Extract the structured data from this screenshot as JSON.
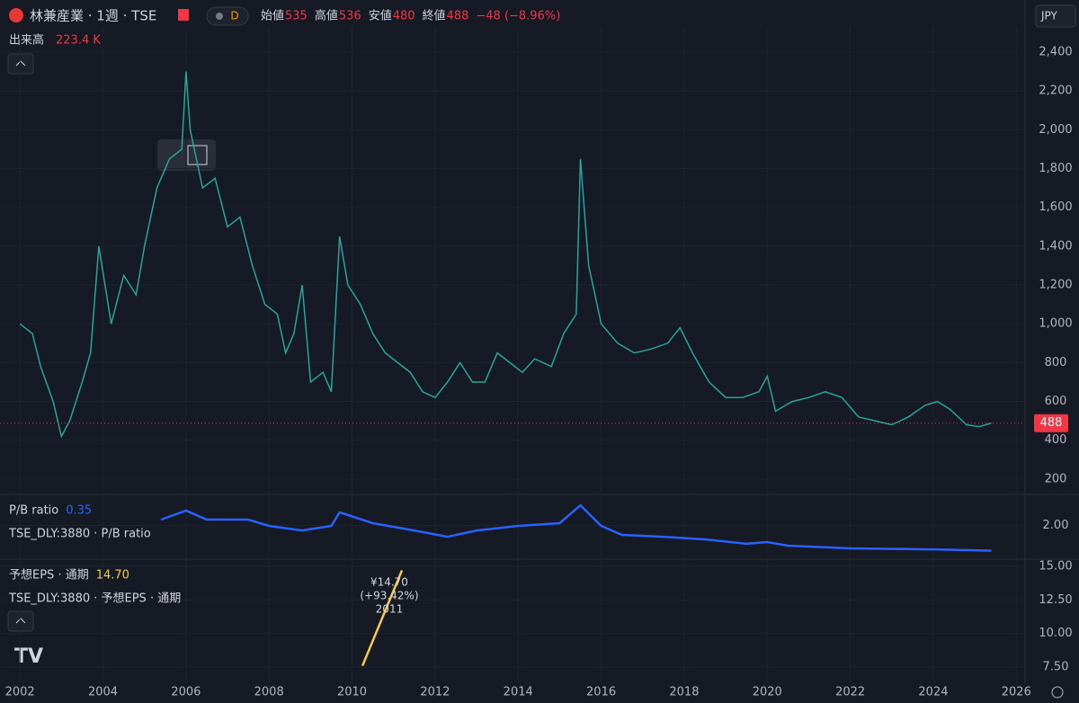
{
  "header": {
    "symbol": "林兼産業 · 1週 · TSE",
    "badge": "D",
    "ohlc": [
      {
        "label": "始値",
        "value": "535"
      },
      {
        "label": "高値",
        "value": "536"
      },
      {
        "label": "安値",
        "value": "480"
      },
      {
        "label": "終値",
        "value": "488"
      }
    ],
    "change": "−48 (−8.96%)",
    "currency": "JPY",
    "volume_label": "出来高",
    "volume": "223.4 K"
  },
  "chart_data": [
    {
      "type": "line",
      "color": "#26a69a",
      "x": [
        2002.0,
        2002.3,
        2002.5,
        2002.8,
        2003.0,
        2003.2,
        2003.5,
        2003.7,
        2003.9,
        2004.2,
        2004.5,
        2004.8,
        2005.0,
        2005.3,
        2005.6,
        2005.9,
        2006.0,
        2006.1,
        2006.4,
        2006.7,
        2007.0,
        2007.3,
        2007.6,
        2007.9,
        2008.2,
        2008.4,
        2008.6,
        2008.8,
        2009.0,
        2009.3,
        2009.5,
        2009.7,
        2009.9,
        2010.2,
        2010.5,
        2010.8,
        2011.1,
        2011.4,
        2011.7,
        2012.0,
        2012.3,
        2012.6,
        2012.9,
        2013.2,
        2013.5,
        2013.8,
        2014.1,
        2014.4,
        2014.8,
        2015.1,
        2015.4,
        2015.5,
        2015.7,
        2016.0,
        2016.4,
        2016.8,
        2017.2,
        2017.6,
        2017.9,
        2018.2,
        2018.6,
        2019.0,
        2019.4,
        2019.8,
        2020.0,
        2020.2,
        2020.6,
        2021.0,
        2021.4,
        2021.8,
        2022.2,
        2022.6,
        2023.0,
        2023.4,
        2023.8,
        2024.1,
        2024.4,
        2024.8,
        2025.1,
        2025.4
      ],
      "values": [
        1000,
        950,
        780,
        600,
        420,
        500,
        700,
        850,
        1400,
        1000,
        1250,
        1150,
        1400,
        1700,
        1850,
        1900,
        2300,
        2000,
        1700,
        1750,
        1500,
        1550,
        1300,
        1100,
        1050,
        850,
        950,
        1200,
        700,
        750,
        650,
        1450,
        1200,
        1100,
        950,
        850,
        800,
        750,
        650,
        620,
        700,
        800,
        700,
        700,
        850,
        800,
        750,
        820,
        780,
        950,
        1050,
        1850,
        1300,
        1000,
        900,
        850,
        870,
        900,
        980,
        850,
        700,
        620,
        620,
        650,
        730,
        550,
        600,
        620,
        650,
        620,
        520,
        500,
        480,
        520,
        580,
        600,
        560,
        480,
        470,
        488
      ],
      "last_value": 488,
      "xlim": [
        2001.52,
        2026.21
      ],
      "xticks": [
        2002,
        2004,
        2006,
        2008,
        2010,
        2012,
        2014,
        2016,
        2018,
        2020,
        2022,
        2024,
        2026
      ],
      "ylim": [
        130,
        2530
      ],
      "yticks": [
        200,
        400,
        600,
        800,
        {
          "value": 1000,
          "label": "1,000"
        },
        {
          "value": 1200,
          "label": "1,200"
        },
        {
          "value": 1400,
          "label": "1,400"
        },
        {
          "value": 1600,
          "label": "1,600"
        },
        {
          "value": 1800,
          "label": "1,800"
        },
        {
          "value": 2000,
          "label": "2,000"
        },
        {
          "value": 2200,
          "label": "2,200"
        },
        {
          "value": 2400,
          "label": "2,400"
        }
      ],
      "grid": true
    },
    {
      "type": "line",
      "title": "P/B ratio",
      "last_value": 0.35,
      "x": [
        2005.4,
        2006.0,
        2006.5,
        2007.5,
        2008.0,
        2008.8,
        2009.5,
        2009.7,
        2010.5,
        2011.5,
        2012.3,
        2013.0,
        2014.0,
        2015.0,
        2015.5,
        2016.0,
        2016.5,
        2017.5,
        2018.5,
        2019.5,
        2020.0,
        2020.5,
        2022.0,
        2024.0,
        2025.4
      ],
      "series": [
        {
          "name": "TSE_DLY:3880 · P/B ratio",
          "color": "#2962ff",
          "values": [
            2.38,
            2.96,
            2.38,
            2.38,
            1.97,
            1.67,
            1.97,
            2.85,
            2.14,
            1.67,
            1.26,
            1.67,
            1.97,
            2.14,
            3.31,
            1.97,
            1.38,
            1.26,
            1.09,
            0.8,
            0.91,
            0.68,
            0.5,
            0.44,
            0.35
          ]
        }
      ],
      "ylim": [
        -0.2,
        3.9
      ],
      "yticks": [
        {
          "value": 2,
          "label": "2.00"
        }
      ],
      "grid": true
    },
    {
      "type": "line",
      "title": "予想EPS · 通期",
      "last_value": {
        "value": 14.7,
        "label": "14.70"
      },
      "x": [
        2010.25,
        2011.2
      ],
      "series": [
        {
          "name": "TSE_DLY:3880 · 予想EPS · 通期",
          "color": "#f7c948",
          "values": [
            7.6,
            14.7
          ]
        }
      ],
      "annotation": [
        "¥14.70",
        "(+93.42%)",
        "2011"
      ],
      "ylim": [
        6.3,
        15.4
      ],
      "yticks": [
        {
          "value": 7.5,
          "label": "7.50"
        },
        {
          "value": 10,
          "label": "10.00"
        },
        {
          "value": 12.5,
          "label": "12.50"
        },
        {
          "value": 15,
          "label": "15.00"
        }
      ],
      "grid": true
    }
  ]
}
